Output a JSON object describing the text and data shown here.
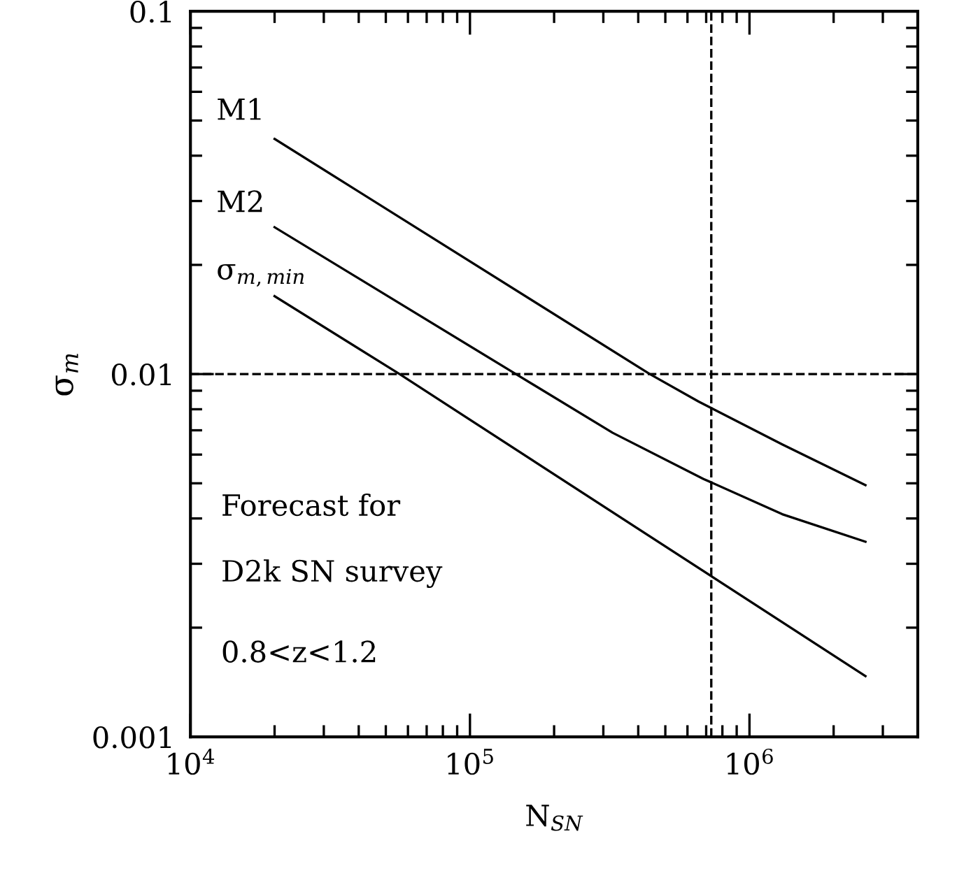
{
  "chart_data": {
    "type": "line",
    "xlabel": "N$_{SN}$",
    "ylabel": "σ$_{m}$",
    "log": "xy",
    "xlim": [
      10000,
      4000000
    ],
    "ylim": [
      0.001,
      0.1
    ],
    "xticks": [
      {
        "value": 10000,
        "label": "10$^{4}$"
      },
      {
        "value": 100000,
        "label": "10$^{5}$"
      },
      {
        "value": 1000000,
        "label": "10$^{6}$"
      }
    ],
    "yticks": [
      0.001,
      0.01,
      0.1
    ],
    "series": [
      {
        "name": "M1",
        "color": "#000000",
        "x": [
          20000,
          440000,
          658000,
          1310000,
          2600000
        ],
        "values": [
          0.0445,
          0.01,
          0.0084,
          0.0064,
          0.00494
        ]
      },
      {
        "name": "M2",
        "color": "#000000",
        "x": [
          20000,
          146000,
          324000,
          685000,
          1310000,
          2600000
        ],
        "values": [
          0.0254,
          0.01,
          0.00689,
          0.00514,
          0.00411,
          0.00345
        ]
      },
      {
        "name": "σ$_{m,min}$",
        "color": "#000000",
        "x": [
          20000,
          56000,
          2600000
        ],
        "values": [
          0.0164,
          0.01,
          0.00147
        ]
      }
    ],
    "ref_lines": [
      {
        "axis": "y",
        "value": 0.01,
        "line_style": "dashed",
        "color": "#000000"
      },
      {
        "axis": "x",
        "value": 730000,
        "line_style": "dashed",
        "color": "#000000"
      }
    ],
    "annotations": [
      "Forecast for",
      "D2k SN survey",
      "0.8<z<1.2"
    ],
    "grid": false,
    "legend": false,
    "marker": "none",
    "line_style": "solid"
  }
}
